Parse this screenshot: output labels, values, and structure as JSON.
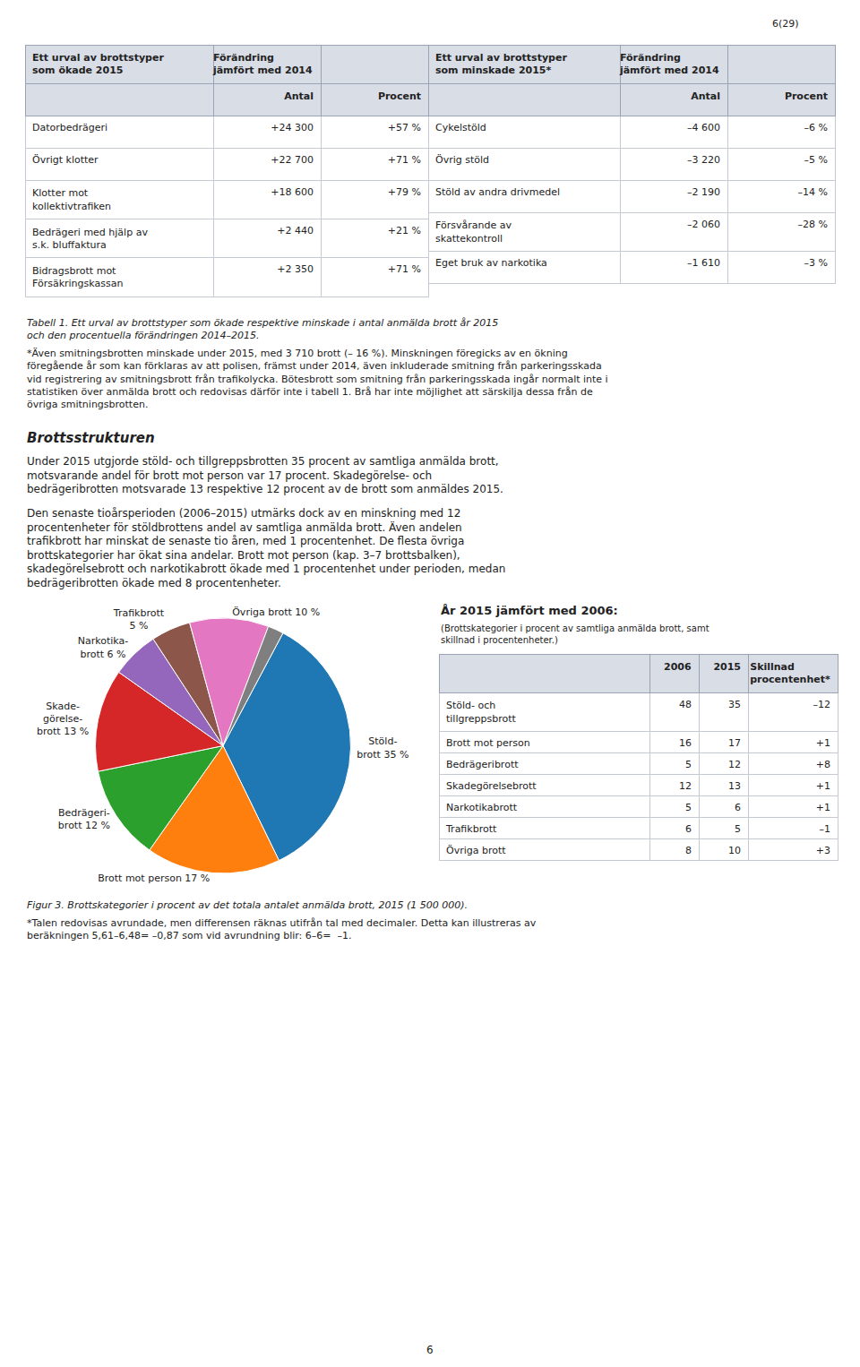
{
  "chart_data": [
    {
      "type": "table",
      "title": "Ett urval av brottstyper\nsom ökade 2015",
      "subtitle": "Förändring\njämfört med 2014",
      "categories": [
        "Datorbedrägeri",
        "Övrigt klotter",
        "Klotter mot\nkollektivtrafiken",
        "Bedrägeri med hjälp av\ns.k. bluffaktura",
        "Bidragsbrott mot\nFörsäkringskassan"
      ],
      "series": [
        {
          "name": "Antal",
          "values": [
            24300,
            22700,
            18600,
            2440,
            2350
          ],
          "value_labels": [
            "+24 300",
            "+22 700",
            "+18 600",
            "+2 440",
            "+2 350"
          ]
        },
        {
          "name": "Procent",
          "values": [
            57,
            71,
            79,
            21,
            71
          ],
          "value_labels": [
            "+57 %",
            "+71 %",
            "+79 %",
            "+21 %",
            "+71 %"
          ]
        }
      ],
      "annotations": [
        "6(29)",
        "Tabell 1. Ett urval av brottstyper som ökade respektive minskade i antal anmälda brott år 2015\noch den procentuella förändringen 2014–2015.",
        "*Även smitningsbrotten minskade under 2015, med 3 710 brott (– 16 %). Minskningen föregicks av en ökning\nföregående år som kan förklaras av att polisen, främst under 2014, även inkluderade smitning från parkeringsskada\nvid registrering av smitningsbrott från trafikolycka. Bötesbrott som smitning från parkeringsskada ingår normalt inte i\nstatistiken över anmälda brott och redovisas därför inte i tabell 1. Brå har inte möjlighet att särskilja dessa från de\növriga smitningsbrotten."
      ]
    },
    {
      "type": "table",
      "title": "Ett urval av brottstyper\nsom minskade 2015*",
      "subtitle": "Förändring\njämfört med 2014",
      "categories": [
        "Cykelstöld",
        "Övrig stöld",
        "Stöld av andra drivmedel",
        "Försvårande av\nskattekontroll",
        "Eget bruk av narkotika"
      ],
      "series": [
        {
          "name": "Antal",
          "values": [
            -4600,
            -3220,
            -2190,
            -2060,
            -1610
          ],
          "value_labels": [
            "–4 600",
            "–3 220",
            "–2 190",
            "–2 060",
            "–1 610"
          ]
        },
        {
          "name": "Procent",
          "values": [
            -6,
            -5,
            -14,
            -28,
            -3
          ],
          "value_labels": [
            "–6 %",
            "–5 %",
            "–14 %",
            "–28 %",
            "–3 %"
          ]
        }
      ]
    },
    {
      "type": "pie",
      "values": [
        35,
        17,
        12,
        13,
        6,
        5,
        10,
        2
      ],
      "value_labels": [
        "Stöld-\nbrott 35 %",
        "Brott mot person 17 %",
        "Bedrägeri-\nbrott 12 %",
        "Skade-\ngörelse-\nbrott 13 %",
        "Narkotika-\nbrott 6 %",
        "Trafikbrott\n5 %",
        "Övriga brott 10 %",
        null
      ],
      "annotations": [
        "Brottsstrukturen",
        "Under 2015 utgjorde stöld- och tillgreppsbrotten 35 procent av samtliga anmälda brott,\nmotsvarande andel för brott mot person var 17 procent. Skadegörelse- och\nbedrägeribrotten motsvarade 13 respektive 12 procent av de brott som anmäldes 2015.",
        "Den senaste tioårsperioden (2006–2015) utmärks dock av en minskning med 12\nprocentenheter för stöldbrottens andel av samtliga anmälda brott. Även andelen\ntrafikbrott har minskat de senaste tio åren, med 1 procentenhet. De flesta övriga\nbrottskategorier har ökat sina andelar. Brott mot person (kap. 3–7 brottsbalken),\nskadegörelsebrott och narkotikabrott ökade med 1 procentenhet under perioden, medan\nbedrägeribrotten ökade med 8 procentenheter.",
        "Figur 3. Brottskategorier i procent av det totala antalet anmälda brott, 2015 (1 500 000).",
        "*Talen redovisas avrundade, men differensen räknas utifrån tal med decimaler. Detta kan illustreras av\nberäkningen 5,61–6,48= –0,87 som vid avrundning blir: 6–6=  –1.",
        "6"
      ]
    },
    {
      "type": "table",
      "title": "År 2015 jämfört med 2006:",
      "subtitle": "(Brottskategorier i procent av samtliga anmälda brott, samt\nskillnad i procentenheter.)",
      "categories": [
        "Stöld- och\ntillgreppsbrott",
        "Brott mot person",
        "Bedrägeribrott",
        "Skadegörelsebrott",
        "Narkotikabrott",
        "Trafikbrott",
        "Övriga brott"
      ],
      "series": [
        {
          "name": "2006",
          "values": [
            48,
            16,
            5,
            12,
            5,
            6,
            8
          ]
        },
        {
          "name": "2015",
          "values": [
            35,
            17,
            12,
            13,
            6,
            5,
            10
          ]
        },
        {
          "name": "Skillnad\nprocentenhet*",
          "values": [
            -12,
            1,
            8,
            1,
            1,
            -1,
            3
          ],
          "value_labels": [
            "–12",
            "+1",
            "+8",
            "+1",
            "+1",
            "–1",
            "+3"
          ]
        }
      ]
    }
  ]
}
